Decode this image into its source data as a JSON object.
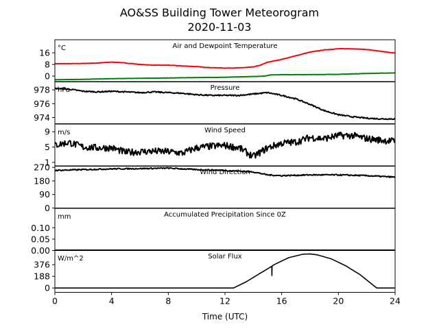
{
  "title_line1": "AO&SS Building Tower Meteorogram",
  "title_line2": "2020-11-03",
  "xlabel": "Time (UTC)",
  "chart_data": {
    "type": "line",
    "x_unit": "hours UTC",
    "xlim": [
      0,
      24
    ],
    "xticks": [
      "0",
      "4",
      "8",
      "12",
      "16",
      "20",
      "24"
    ],
    "panels": [
      {
        "key": "temp",
        "title": "Air and Dewpoint Temperature",
        "unit": "°C",
        "ylim": [
          -4,
          25
        ],
        "yticks": [
          {
            "value": 16,
            "label": "16"
          },
          {
            "value": 8,
            "label": "8"
          },
          {
            "value": 0,
            "label": "0"
          }
        ],
        "series": [
          {
            "color": "#ff0000",
            "line_width": 2,
            "noise": 0.12,
            "x": [
              0,
              1,
              2,
              3,
              4,
              4.5,
              5,
              6,
              7,
              8,
              9,
              10,
              11,
              12,
              13,
              14,
              14.5,
              15,
              16,
              17,
              18,
              19,
              20,
              21,
              22,
              23,
              24
            ],
            "y": [
              8.5,
              8.5,
              8.7,
              9.0,
              9.6,
              9.4,
              9.0,
              8.0,
              7.5,
              7.5,
              7.0,
              6.5,
              5.8,
              5.5,
              5.6,
              6.3,
              7.5,
              9.5,
              11.5,
              14.0,
              16.5,
              18.0,
              18.8,
              18.8,
              18.3,
              17.0,
              15.8
            ]
          },
          {
            "color": "#008000",
            "line_width": 2,
            "noise": 0.08,
            "x": [
              0,
              2,
              4,
              6,
              8,
              10,
              12,
              14,
              14.8,
              15.2,
              16,
              18,
              20,
              22,
              24
            ],
            "y": [
              -2.5,
              -2.2,
              -1.8,
              -1.5,
              -1.3,
              -1.0,
              -0.8,
              -0.3,
              0.0,
              0.8,
              1.0,
              1.0,
              1.2,
              1.8,
              2.2
            ]
          }
        ]
      },
      {
        "key": "pressure",
        "title": "Pressure",
        "unit": "hPa",
        "ylim": [
          973.1,
          979.2
        ],
        "yticks": [
          {
            "value": 978,
            "label": "978"
          },
          {
            "value": 976,
            "label": "976"
          },
          {
            "value": 974,
            "label": "974"
          }
        ],
        "series": [
          {
            "color": "#000000",
            "line_width": 2,
            "noise": 0.09,
            "x": [
              0,
              1,
              2,
              3,
              4,
              5,
              6,
              7,
              8,
              9,
              10,
              11,
              12,
              13,
              14,
              15,
              16,
              17,
              18,
              19,
              20,
              21,
              22,
              23,
              24
            ],
            "y": [
              978.2,
              978.1,
              977.8,
              977.7,
              977.8,
              977.7,
              977.6,
              977.7,
              977.6,
              977.5,
              977.3,
              977.2,
              977.2,
              977.2,
              977.4,
              977.6,
              977.2,
              976.7,
              975.9,
              975.0,
              974.4,
              974.1,
              973.9,
              973.8,
              973.8
            ]
          }
        ]
      },
      {
        "key": "wind_speed",
        "title": "Wind Speed",
        "unit": "m/s",
        "ylim": [
          0,
          11
        ],
        "yticks": [
          {
            "value": 9,
            "label": "9"
          },
          {
            "value": 5,
            "label": "5"
          },
          {
            "value": 1,
            "label": "1"
          }
        ],
        "series": [
          {
            "color": "#000000",
            "line_width": 2,
            "noise": 0.9,
            "x": [
              0,
              1,
              2,
              3,
              4,
              5,
              6,
              7,
              8,
              9,
              10,
              11,
              12,
              13,
              14,
              15,
              16,
              17,
              18,
              19,
              20,
              21,
              22,
              23,
              24
            ],
            "y": [
              5.5,
              6.2,
              5.0,
              4.8,
              4.8,
              3.6,
              3.8,
              3.9,
              3.8,
              3.4,
              4.8,
              5.2,
              5.4,
              4.8,
              2.5,
              4.8,
              6.0,
              6.3,
              7.5,
              7.2,
              8.0,
              8.0,
              7.2,
              6.8,
              6.5
            ]
          }
        ]
      },
      {
        "key": "wind_dir",
        "title": "Wind Direction",
        "unit": "",
        "ylim": [
          0,
          280
        ],
        "yticks": [
          {
            "value": 270,
            "label": "270"
          },
          {
            "value": 180,
            "label": "180"
          },
          {
            "value": 90,
            "label": "90"
          },
          {
            "value": 0,
            "label": "0"
          }
        ],
        "series": [
          {
            "color": "#000000",
            "line_width": 2,
            "noise": 4,
            "x": [
              0,
              2,
              4,
              6,
              8,
              9,
              10,
              12,
              14,
              15,
              16,
              18,
              20,
              22,
              24
            ],
            "y": [
              250,
              255,
              260,
              262,
              265,
              260,
              255,
              250,
              240,
              220,
              215,
              220,
              220,
              215,
              205
            ]
          }
        ]
      },
      {
        "key": "precip",
        "title": "Accumulated Precipitation Since 0Z",
        "unit": "mm",
        "ylim": [
          0,
          0.185
        ],
        "yticks": [
          {
            "value": 0.1,
            "label": "0.10"
          },
          {
            "value": 0.05,
            "label": "0.05"
          },
          {
            "value": 0.0,
            "label": "0.00"
          }
        ],
        "series": [
          {
            "color": "#000000",
            "line_width": 3,
            "noise": 0,
            "x": [
              0,
              24
            ],
            "y": [
              0,
              0
            ]
          }
        ]
      },
      {
        "key": "solar",
        "title": "Solar Flux",
        "unit": "W/m^2",
        "ylim": [
          -70,
          610
        ],
        "yticks": [
          {
            "value": 376,
            "label": "376"
          },
          {
            "value": 188,
            "label": "188"
          },
          {
            "value": 0,
            "label": "0"
          }
        ],
        "series": [
          {
            "color": "#000000",
            "line_width": 1.6,
            "noise": 0,
            "x": [
              0,
              12.6,
              13.5,
              14.5,
              15.3,
              15.31,
              15.32,
              15.5,
              16.5,
              17.5,
              18.0,
              18.5,
              19.5,
              20.5,
              21.5,
              22.7,
              24
            ],
            "y": [
              0,
              0,
              100,
              240,
              350,
              200,
              355,
              380,
              490,
              545,
              550,
              535,
              470,
              360,
              220,
              0,
              0
            ]
          }
        ]
      }
    ]
  }
}
